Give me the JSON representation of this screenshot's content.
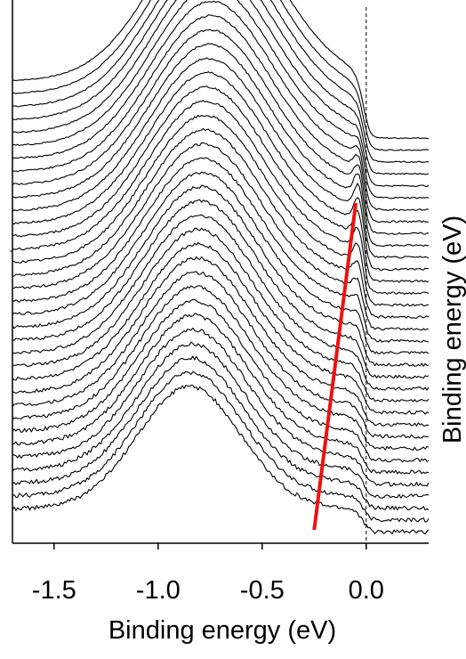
{
  "chart_data": {
    "type": "line",
    "xlabel": "Binding energy (eV)",
    "ylabel": "",
    "right_label": "Binding energy (eV)",
    "xlim": [
      -1.7,
      0.3
    ],
    "x_ticks": [
      -1.5,
      -1.0,
      -0.5,
      0.0
    ],
    "x_tick_labels": [
      "-1.5",
      "-1.0",
      "-0.5",
      "0.0"
    ],
    "fermi_level_marker": {
      "x": 0.0,
      "style": "dashed"
    },
    "curves": {
      "count": 34,
      "description_free": true,
      "hump_peak_x": [
        -0.72,
        -0.85
      ],
      "hump_amplitude": [
        0.58,
        0.43
      ],
      "hump_width": [
        0.42,
        0.35
      ],
      "quasiparticle_peak_x": [
        -0.02,
        -0.05
      ],
      "quasiparticle_amplitude": [
        0.0,
        0.14,
        0.0
      ],
      "left_edge_level": [
        0.2,
        0.08
      ],
      "right_tail_level": 0.0
    },
    "dispersion_line": {
      "color": "#ee1111",
      "x": [
        -0.05,
        -0.25
      ]
    }
  }
}
